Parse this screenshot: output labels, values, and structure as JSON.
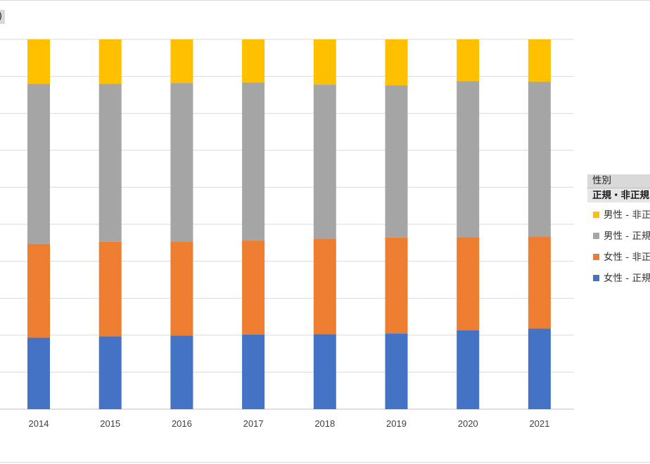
{
  "corner_label": ")",
  "legend": {
    "header": "性別",
    "subheader": "正規・非正規",
    "items": [
      {
        "label": "男性 - 非正規",
        "color": "#FFC000"
      },
      {
        "label": "男性 - 正規",
        "color": "#A5A5A5"
      },
      {
        "label": "女性 - 非正規",
        "color": "#ED7D31"
      },
      {
        "label": "女性 - 正規",
        "color": "#4472C4"
      }
    ]
  },
  "chart_data": {
    "type": "bar",
    "stacked": true,
    "normalized": true,
    "categories": [
      "2014",
      "2015",
      "2016",
      "2017",
      "2018",
      "2019",
      "2020",
      "2021"
    ],
    "series": [
      {
        "name": "女性 - 正規",
        "color": "#4472C4",
        "values": [
          19.3,
          19.7,
          19.9,
          20.2,
          20.3,
          20.5,
          21.3,
          21.8
        ]
      },
      {
        "name": "女性 - 非正規",
        "color": "#ED7D31",
        "values": [
          25.4,
          25.6,
          25.5,
          25.4,
          25.7,
          25.9,
          25.2,
          24.9
        ]
      },
      {
        "name": "男性 - 正規",
        "color": "#A5A5A5",
        "values": [
          43.3,
          42.7,
          42.8,
          42.7,
          41.8,
          41.2,
          42.2,
          41.8
        ]
      },
      {
        "name": "男性 - 非正規",
        "color": "#FFC000",
        "values": [
          12.0,
          12.0,
          11.8,
          11.7,
          12.2,
          12.4,
          11.3,
          11.5
        ]
      }
    ],
    "ylim": [
      0,
      100
    ],
    "grid": true,
    "legend_position": "right"
  }
}
